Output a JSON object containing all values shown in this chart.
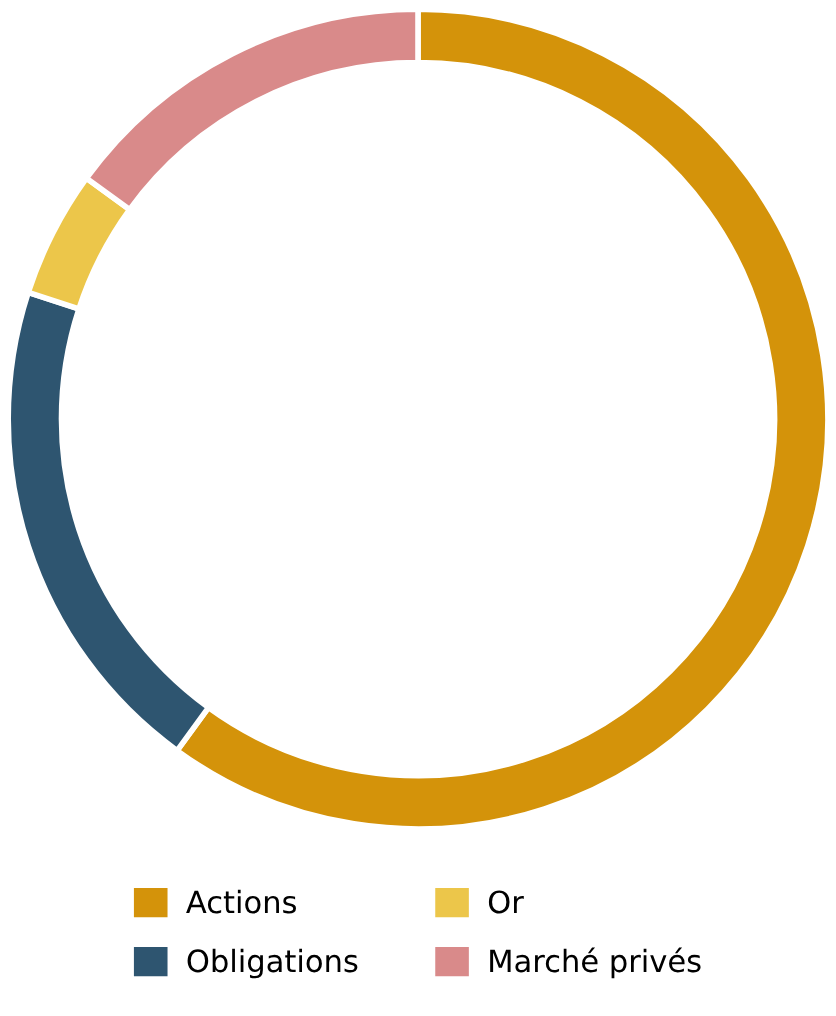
{
  "chart_data": {
    "type": "donut",
    "categories": [
      "Actions",
      "Obligations",
      "Or",
      "Marché privés"
    ],
    "values": [
      60,
      20,
      5,
      15
    ],
    "colors": [
      "#d4930a",
      "#2e5570",
      "#ecc64a",
      "#d98a8a"
    ],
    "legend": "bottom"
  }
}
